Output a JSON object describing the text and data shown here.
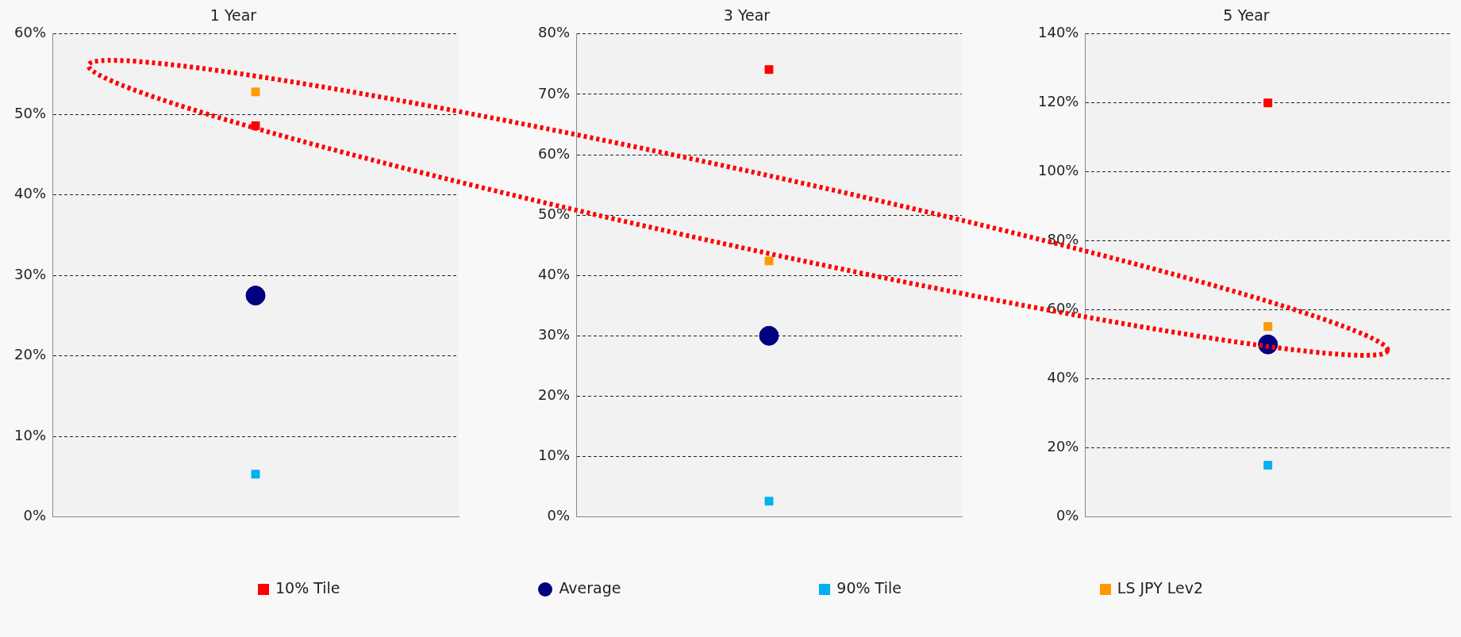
{
  "chart_data": [
    {
      "type": "scatter",
      "title": "1 Year",
      "categories": [
        null
      ],
      "ylim": [
        0,
        60
      ],
      "yticks": [
        {
          "value": 0,
          "label": "0%"
        },
        {
          "value": 10,
          "label": "10%"
        },
        {
          "value": 20,
          "label": "20%"
        },
        {
          "value": 30,
          "label": "30%"
        },
        {
          "value": 40,
          "label": "40%"
        },
        {
          "value": 50,
          "label": "50%"
        },
        {
          "value": 60,
          "label": "60%"
        }
      ],
      "grid": "y",
      "legend": "bottom",
      "series": [
        {
          "name": "10% Tile",
          "color": "#ff0000",
          "marker": "square",
          "values": [
            48.6
          ]
        },
        {
          "name": "Average",
          "color": "#000080",
          "marker": "circle",
          "values": [
            27.5
          ]
        },
        {
          "name": "90% Tile",
          "color": "#00b0f0",
          "marker": "square",
          "values": [
            5.3
          ]
        },
        {
          "name": "LS JPY Lev2",
          "color": "#ff9900",
          "marker": "square",
          "values": [
            52.8
          ]
        }
      ]
    },
    {
      "type": "scatter",
      "title": "3 Year",
      "categories": [
        null
      ],
      "ylim": [
        0,
        80
      ],
      "yticks": [
        {
          "value": 0,
          "label": "0%"
        },
        {
          "value": 10,
          "label": "10%"
        },
        {
          "value": 20,
          "label": "20%"
        },
        {
          "value": 30,
          "label": "30%"
        },
        {
          "value": 40,
          "label": "40%"
        },
        {
          "value": 50,
          "label": "50%"
        },
        {
          "value": 60,
          "label": "60%"
        },
        {
          "value": 70,
          "label": "70%"
        },
        {
          "value": 80,
          "label": "80%"
        }
      ],
      "grid": "y",
      "series": [
        {
          "color": "#ff0000",
          "marker": "square",
          "values": [
            74.1
          ]
        },
        {
          "color": "#000080",
          "marker": "circle",
          "values": [
            30.0
          ]
        },
        {
          "color": "#00b0f0",
          "marker": "square",
          "values": [
            2.6
          ]
        },
        {
          "color": "#ff9900",
          "marker": "square",
          "values": [
            42.4
          ]
        }
      ]
    },
    {
      "type": "scatter",
      "title": "5 Year",
      "categories": [
        null
      ],
      "ylim": [
        0,
        140
      ],
      "yticks": [
        {
          "value": 0,
          "label": "0%"
        },
        {
          "value": 20,
          "label": "20%"
        },
        {
          "value": 40,
          "label": "40%"
        },
        {
          "value": 60,
          "label": "60%"
        },
        {
          "value": 80,
          "label": "80%"
        },
        {
          "value": 100,
          "label": "100%"
        },
        {
          "value": 120,
          "label": "120%"
        },
        {
          "value": 140,
          "label": "140%"
        }
      ],
      "grid": "y",
      "series": [
        {
          "color": "#ff0000",
          "marker": "square",
          "values": [
            120
          ]
        },
        {
          "color": "#000080",
          "marker": "circle",
          "values": [
            50
          ]
        },
        {
          "color": "#00b0f0",
          "marker": "square",
          "values": [
            15
          ]
        },
        {
          "color": "#ff9900",
          "marker": "square",
          "values": [
            55.2
          ]
        }
      ]
    }
  ]
}
